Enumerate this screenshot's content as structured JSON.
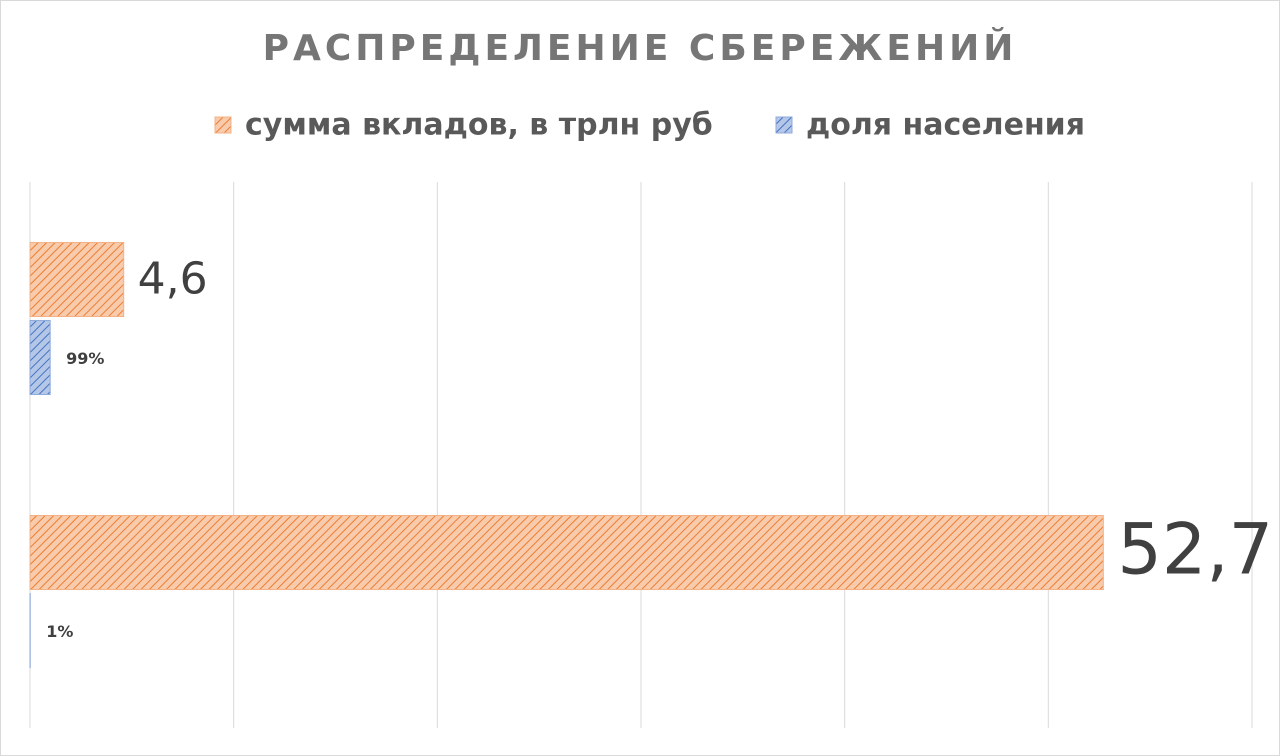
{
  "chart_data": {
    "type": "bar",
    "orientation": "horizontal",
    "title": "РАСПРЕДЕЛЕНИЕ СБЕРЕЖЕНИЙ",
    "categories": [
      null,
      null
    ],
    "series": [
      {
        "name": "сумма вкладов, в трлн руб",
        "color": "#f4b183",
        "values": [
          4.6,
          52.7
        ],
        "value_labels": [
          "4,6",
          "52,7"
        ]
      },
      {
        "name": "доля населения",
        "color": "#8faadc",
        "values": [
          0.99,
          0.01
        ],
        "value_labels": [
          "99%",
          "1%"
        ]
      }
    ],
    "xlim": [
      0,
      60
    ],
    "xticks": [
      0,
      10,
      20,
      30,
      40,
      50,
      60
    ],
    "grid": true,
    "legend": "top"
  }
}
